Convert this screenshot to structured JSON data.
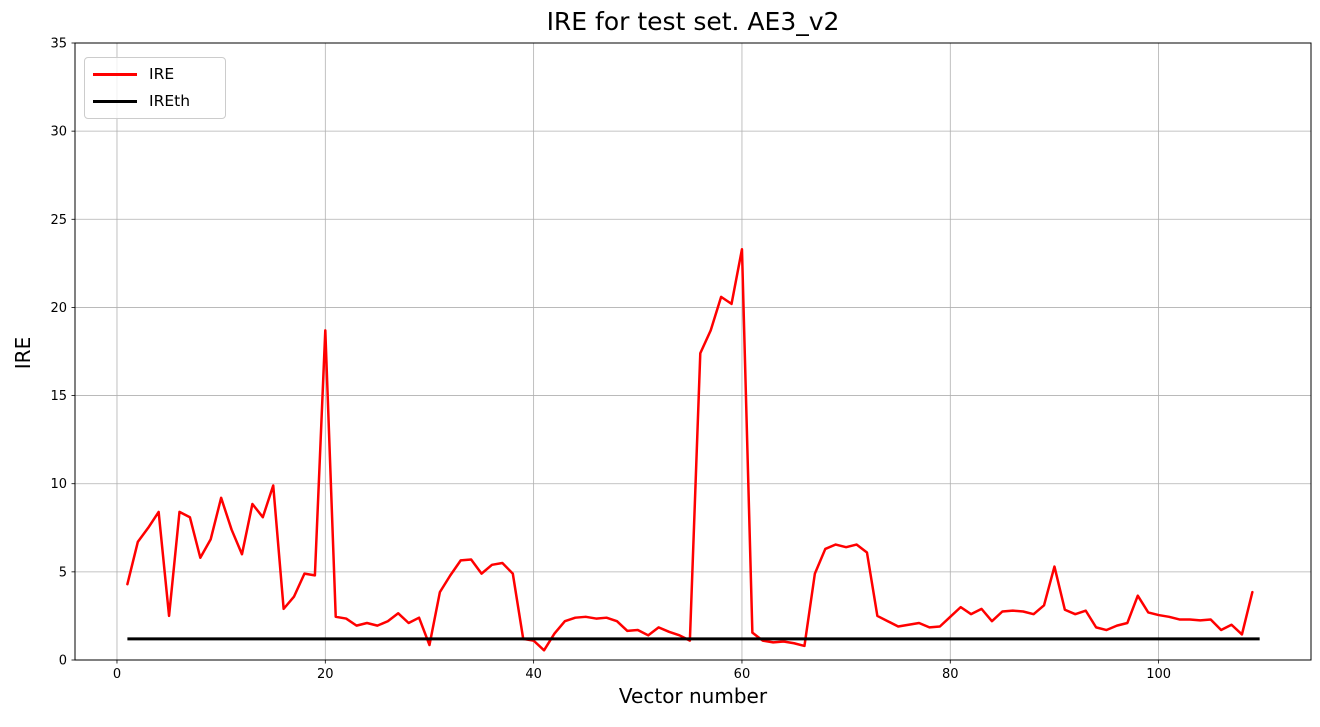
{
  "chart_data": {
    "type": "line",
    "title": "IRE for test set. AE3_v2",
    "xlabel": "Vector number",
    "ylabel": "IRE",
    "background": "#ffffff",
    "grid": true,
    "grid_color": "#b0b0b0",
    "xlim": [
      -4.03,
      114.63
    ],
    "ylim": [
      0,
      35
    ],
    "xticks": [
      0,
      20,
      40,
      60,
      80,
      100
    ],
    "yticks": [
      0,
      5,
      10,
      15,
      20,
      25,
      30,
      35
    ],
    "legend": {
      "position": "upper left",
      "entries": [
        "IRE",
        "IREth"
      ]
    },
    "x_start": 1,
    "series": [
      {
        "name": "IRE",
        "color": "#ff0000",
        "linewidth": 2.5,
        "values": [
          4.3,
          6.7,
          7.5,
          8.4,
          2.5,
          8.4,
          8.1,
          5.8,
          6.85,
          9.2,
          7.4,
          6.0,
          8.85,
          8.1,
          9.9,
          2.9,
          3.6,
          4.9,
          4.8,
          18.7,
          2.45,
          2.35,
          1.95,
          2.1,
          1.95,
          2.2,
          2.65,
          2.1,
          2.4,
          0.85,
          3.85,
          4.8,
          5.65,
          5.7,
          4.9,
          5.4,
          5.5,
          4.9,
          1.2,
          1.1,
          0.55,
          1.5,
          2.2,
          2.4,
          2.45,
          2.35,
          2.4,
          2.2,
          1.65,
          1.7,
          1.4,
          1.85,
          1.6,
          1.4,
          1.1,
          17.4,
          18.7,
          20.6,
          20.2,
          23.3,
          1.55,
          1.1,
          1.0,
          1.05,
          0.95,
          0.8,
          4.9,
          6.3,
          6.55,
          6.4,
          6.55,
          6.1,
          2.5,
          2.2,
          1.9,
          2.0,
          2.1,
          1.85,
          1.9,
          2.45,
          3.0,
          2.6,
          2.9,
          2.2,
          2.75,
          2.8,
          2.75,
          2.6,
          3.1,
          5.3,
          2.85,
          2.6,
          2.8,
          1.85,
          1.7,
          1.95,
          2.1,
          3.65,
          2.7,
          2.55,
          2.45,
          2.3,
          2.3,
          2.25,
          2.3,
          1.7,
          2.0,
          1.45,
          3.85
        ]
      },
      {
        "name": "IREth",
        "color": "#000000",
        "linewidth": 3,
        "type": "constant",
        "value": 1.2,
        "x_range": [
          1,
          109.7
        ]
      }
    ]
  }
}
